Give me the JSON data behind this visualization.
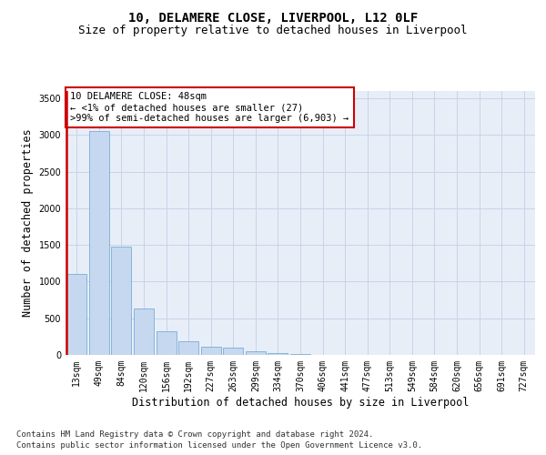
{
  "title_line1": "10, DELAMERE CLOSE, LIVERPOOL, L12 0LF",
  "title_line2": "Size of property relative to detached houses in Liverpool",
  "xlabel": "Distribution of detached houses by size in Liverpool",
  "ylabel": "Number of detached properties",
  "footnote1": "Contains HM Land Registry data © Crown copyright and database right 2024.",
  "footnote2": "Contains public sector information licensed under the Open Government Licence v3.0.",
  "annotation_line1": "10 DELAMERE CLOSE: 48sqm",
  "annotation_line2": "← <1% of detached houses are smaller (27)",
  "annotation_line3": ">99% of semi-detached houses are larger (6,903) →",
  "bar_labels": [
    "13sqm",
    "49sqm",
    "84sqm",
    "120sqm",
    "156sqm",
    "192sqm",
    "227sqm",
    "263sqm",
    "299sqm",
    "334sqm",
    "370sqm",
    "406sqm",
    "441sqm",
    "477sqm",
    "513sqm",
    "549sqm",
    "584sqm",
    "620sqm",
    "656sqm",
    "691sqm",
    "727sqm"
  ],
  "bar_values": [
    1100,
    3050,
    1480,
    630,
    320,
    190,
    110,
    95,
    55,
    30,
    10,
    5,
    2,
    1,
    0,
    0,
    0,
    0,
    0,
    0,
    0
  ],
  "bar_color": "#c5d8f0",
  "bar_edge_color": "#7aadd4",
  "highlight_vline_x": -0.5,
  "highlight_color": "#cc0000",
  "ylim": [
    0,
    3600
  ],
  "yticks": [
    0,
    500,
    1000,
    1500,
    2000,
    2500,
    3000,
    3500
  ],
  "grid_color": "#c8d4e8",
  "bg_color": "#e8eef8",
  "annotation_box_color": "#cc0000",
  "title_fontsize": 10,
  "subtitle_fontsize": 9,
  "axis_label_fontsize": 8.5,
  "tick_fontsize": 7,
  "annotation_fontsize": 7.5,
  "footnote_fontsize": 6.5
}
